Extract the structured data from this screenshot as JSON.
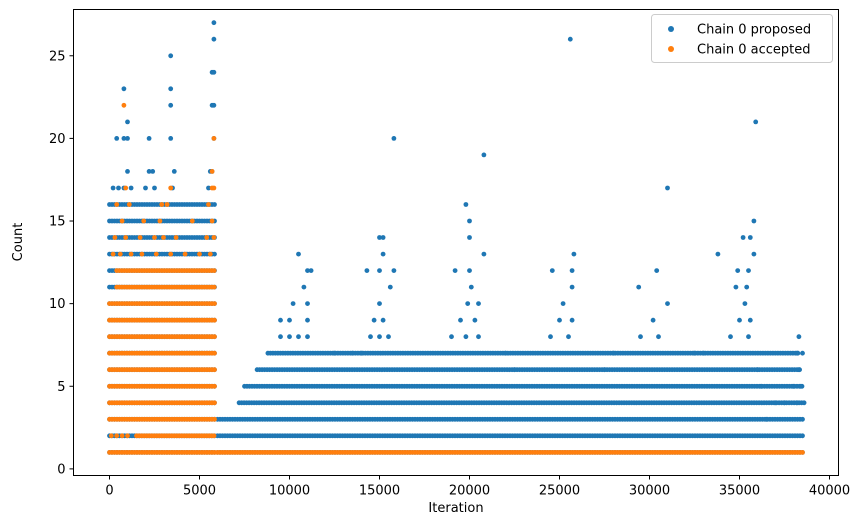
{
  "chart_data": {
    "type": "scatter",
    "title": "",
    "xlabel": "Iteration",
    "ylabel": "Count",
    "xlim": [
      -2000,
      40500
    ],
    "ylim": [
      -0.4,
      27.8
    ],
    "xticks": [
      0,
      5000,
      10000,
      15000,
      20000,
      25000,
      30000,
      35000,
      40000
    ],
    "xtick_labels": [
      "0",
      "5000",
      "10000",
      "15000",
      "20000",
      "25000",
      "30000",
      "35000",
      "40000"
    ],
    "yticks": [
      0,
      5,
      10,
      15,
      20,
      25
    ],
    "ytick_labels": [
      "0",
      "5",
      "10",
      "15",
      "20",
      "25"
    ],
    "grid": false,
    "legend_position": "top-right",
    "series": [
      {
        "name": "Chain 0 proposed",
        "color": "#1f77b4",
        "bands": [
          {
            "x_range": [
              0,
              5900
            ],
            "y_values": [
              1,
              2,
              3,
              4,
              5,
              6,
              7,
              8,
              9,
              10,
              11,
              12,
              13,
              14,
              15,
              16
            ]
          },
          {
            "x_range": [
              6000,
              38600
            ],
            "y_values": [
              1,
              2,
              3
            ]
          },
          {
            "x_range": [
              7200,
              38600
            ],
            "y_values": [
              4
            ]
          },
          {
            "x_range": [
              7500,
              38500
            ],
            "y_values": [
              5
            ]
          },
          {
            "x_range": [
              8200,
              38400
            ],
            "y_values": [
              6
            ]
          },
          {
            "x_range": [
              8800,
              38300
            ],
            "y_values": [
              7
            ]
          }
        ],
        "points": [
          [
            200,
            17
          ],
          [
            500,
            17
          ],
          [
            800,
            17
          ],
          [
            1200,
            17
          ],
          [
            2000,
            17
          ],
          [
            2500,
            17
          ],
          [
            3500,
            17
          ],
          [
            5500,
            17
          ],
          [
            1000,
            18
          ],
          [
            2200,
            18
          ],
          [
            2400,
            18
          ],
          [
            3600,
            18
          ],
          [
            5600,
            18
          ],
          [
            5700,
            18
          ],
          [
            400,
            20
          ],
          [
            800,
            20
          ],
          [
            1000,
            20
          ],
          [
            2200,
            20
          ],
          [
            3400,
            20
          ],
          [
            5800,
            20
          ],
          [
            1000,
            21
          ],
          [
            3400,
            22
          ],
          [
            5700,
            22
          ],
          [
            5800,
            22
          ],
          [
            800,
            23
          ],
          [
            3400,
            23
          ],
          [
            5700,
            24
          ],
          [
            5800,
            24
          ],
          [
            3400,
            25
          ],
          [
            5800,
            26
          ],
          [
            5800,
            27
          ],
          [
            9500,
            8
          ],
          [
            10000,
            8
          ],
          [
            10500,
            8
          ],
          [
            11000,
            8
          ],
          [
            14500,
            8
          ],
          [
            15000,
            8
          ],
          [
            15500,
            8
          ],
          [
            19000,
            8
          ],
          [
            19800,
            8
          ],
          [
            20500,
            8
          ],
          [
            24500,
            8
          ],
          [
            25500,
            8
          ],
          [
            29500,
            8
          ],
          [
            30500,
            8
          ],
          [
            34500,
            8
          ],
          [
            35500,
            8
          ],
          [
            38300,
            8
          ],
          [
            9500,
            9
          ],
          [
            10000,
            9
          ],
          [
            11000,
            9
          ],
          [
            14700,
            9
          ],
          [
            15200,
            9
          ],
          [
            19500,
            9
          ],
          [
            20300,
            9
          ],
          [
            25000,
            9
          ],
          [
            25700,
            9
          ],
          [
            30200,
            9
          ],
          [
            35000,
            9
          ],
          [
            35600,
            9
          ],
          [
            10200,
            10
          ],
          [
            11000,
            10
          ],
          [
            15000,
            10
          ],
          [
            19900,
            10
          ],
          [
            20500,
            10
          ],
          [
            25200,
            10
          ],
          [
            31000,
            10
          ],
          [
            35300,
            10
          ],
          [
            10800,
            11
          ],
          [
            15600,
            11
          ],
          [
            20100,
            11
          ],
          [
            25700,
            11
          ],
          [
            29400,
            11
          ],
          [
            34800,
            11
          ],
          [
            35400,
            11
          ],
          [
            11000,
            12
          ],
          [
            11200,
            12
          ],
          [
            14300,
            12
          ],
          [
            15000,
            12
          ],
          [
            15800,
            12
          ],
          [
            19200,
            12
          ],
          [
            20000,
            12
          ],
          [
            24600,
            12
          ],
          [
            25700,
            12
          ],
          [
            30400,
            12
          ],
          [
            34900,
            12
          ],
          [
            35500,
            12
          ],
          [
            10500,
            13
          ],
          [
            15200,
            13
          ],
          [
            20800,
            13
          ],
          [
            25800,
            13
          ],
          [
            33800,
            13
          ],
          [
            35800,
            13
          ],
          [
            15000,
            14
          ],
          [
            15200,
            14
          ],
          [
            20000,
            14
          ],
          [
            35200,
            14
          ],
          [
            35600,
            14
          ],
          [
            35800,
            15
          ],
          [
            19800,
            16
          ],
          [
            20000,
            15
          ],
          [
            15800,
            20
          ],
          [
            20800,
            19
          ],
          [
            25600,
            26
          ],
          [
            31000,
            17
          ],
          [
            35900,
            21
          ],
          [
            36500,
            3
          ],
          [
            37000,
            4
          ],
          [
            37500,
            4
          ],
          [
            38200,
            4
          ],
          [
            38400,
            5
          ],
          [
            38000,
            5
          ],
          [
            38300,
            6
          ],
          [
            38200,
            7
          ],
          [
            38500,
            7
          ],
          [
            12500,
            7
          ],
          [
            13500,
            7
          ],
          [
            14000,
            7
          ],
          [
            22000,
            7
          ],
          [
            22500,
            6
          ],
          [
            27500,
            6
          ],
          [
            28000,
            7
          ],
          [
            32500,
            7
          ],
          [
            33000,
            7
          ],
          [
            36000,
            6
          ],
          [
            36200,
            5
          ]
        ]
      },
      {
        "name": "Chain 0 accepted",
        "color": "#ff7f0e",
        "bands": [
          {
            "x_range": [
              0,
              5900
            ],
            "y_values": [
              1,
              3,
              4,
              5,
              6,
              7,
              8,
              9,
              10
            ]
          },
          {
            "x_range": [
              400,
              5900
            ],
            "y_values": [
              11,
              12
            ]
          },
          {
            "x_range": [
              1500,
              5900
            ],
            "y_values": [
              2
            ]
          },
          {
            "x_range": [
              6000,
              38600
            ],
            "y_values": [
              1
            ]
          }
        ],
        "points": [
          [
            100,
            2
          ],
          [
            400,
            2
          ],
          [
            700,
            2
          ],
          [
            1000,
            2
          ],
          [
            200,
            13
          ],
          [
            600,
            13
          ],
          [
            1200,
            13
          ],
          [
            1800,
            13
          ],
          [
            2600,
            13
          ],
          [
            3400,
            13
          ],
          [
            4200,
            13
          ],
          [
            5000,
            13
          ],
          [
            5600,
            13
          ],
          [
            300,
            14
          ],
          [
            900,
            14
          ],
          [
            1700,
            14
          ],
          [
            2500,
            14
          ],
          [
            3000,
            14
          ],
          [
            3700,
            14
          ],
          [
            5400,
            14
          ],
          [
            5800,
            14
          ],
          [
            700,
            15
          ],
          [
            1900,
            15
          ],
          [
            2800,
            15
          ],
          [
            4600,
            15
          ],
          [
            5700,
            15
          ],
          [
            400,
            16
          ],
          [
            1100,
            16
          ],
          [
            2900,
            16
          ],
          [
            3200,
            16
          ],
          [
            5500,
            16
          ],
          [
            900,
            17
          ],
          [
            3400,
            17
          ],
          [
            5700,
            17
          ],
          [
            5800,
            17
          ],
          [
            5700,
            18
          ],
          [
            5800,
            20
          ],
          [
            800,
            22
          ]
        ]
      }
    ]
  }
}
